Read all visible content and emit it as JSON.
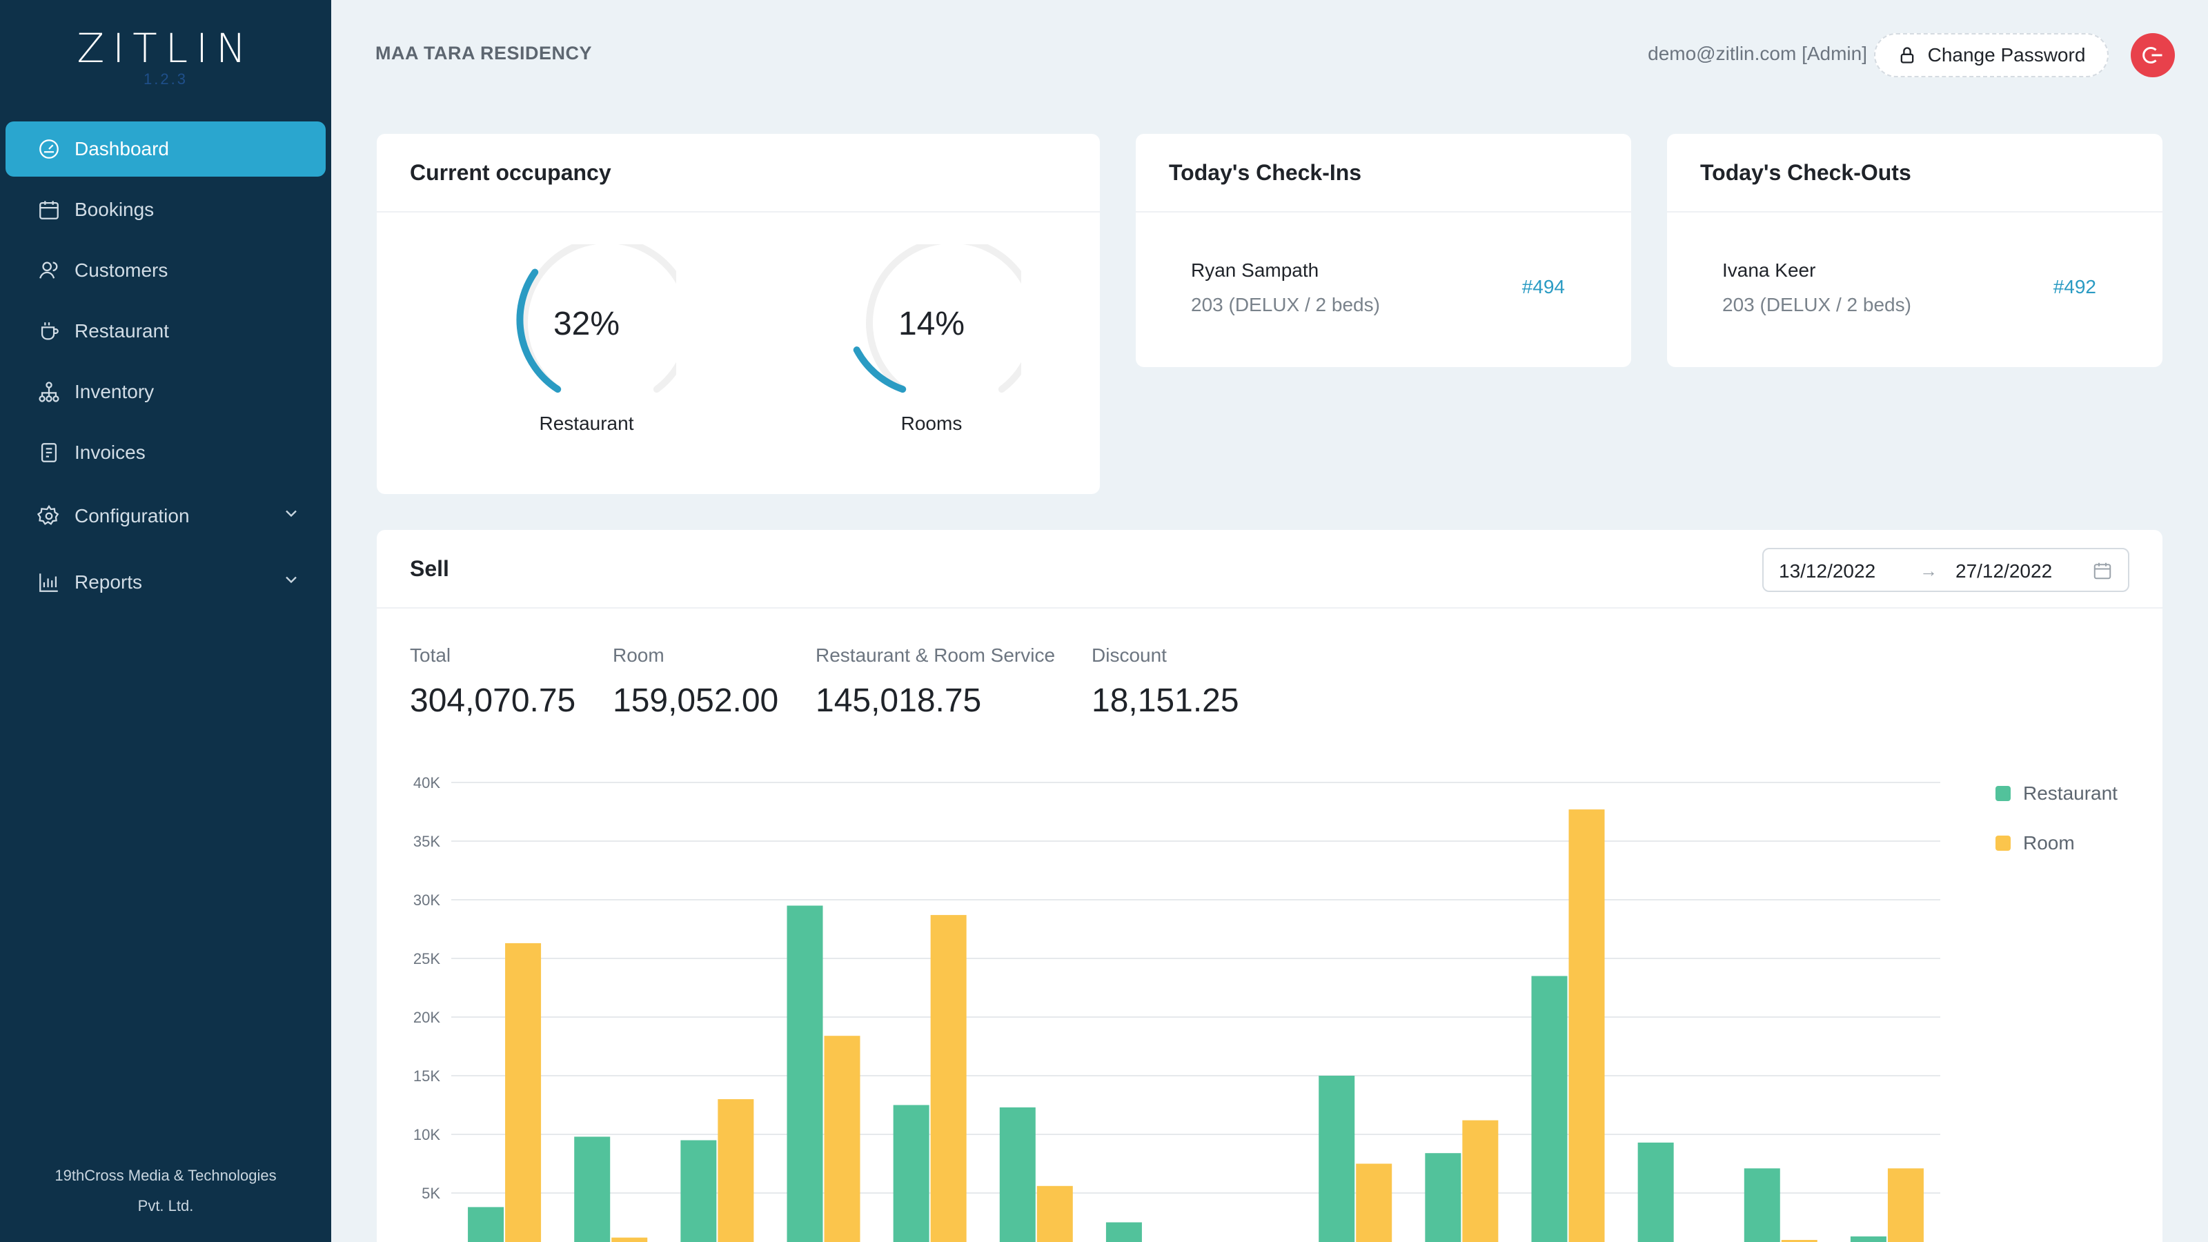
{
  "app": {
    "logo_text": "ZITLIN",
    "version": "1.2.3",
    "footer_line1": "19thCross Media & Technologies",
    "footer_line2": "Pvt. Ltd."
  },
  "sidebar": {
    "items": [
      {
        "label": "Dashboard",
        "icon": "dashboard-icon",
        "active": true
      },
      {
        "label": "Bookings",
        "icon": "calendar-icon"
      },
      {
        "label": "Customers",
        "icon": "users-icon"
      },
      {
        "label": "Restaurant",
        "icon": "coffee-cup-icon"
      },
      {
        "label": "Inventory",
        "icon": "hierarchy-icon"
      },
      {
        "label": "Invoices",
        "icon": "invoice-icon"
      },
      {
        "label": "Configuration",
        "icon": "gear-icon",
        "expandable": true
      },
      {
        "label": "Reports",
        "icon": "bar-chart-icon",
        "expandable": true
      }
    ]
  },
  "header": {
    "hotel_name": "MAA TARA RESIDENCY",
    "user": "demo@zitlin.com [Admin]",
    "change_password_label": "Change Password"
  },
  "occupancy": {
    "title": "Current occupancy",
    "restaurant": {
      "value": 32,
      "display": "32%",
      "label": "Restaurant"
    },
    "rooms": {
      "value": 14,
      "display": "14%",
      "label": "Rooms"
    }
  },
  "checkins": {
    "title": "Today's Check-Ins",
    "guest": "Ryan Sampath",
    "room": "203 (DELUX / 2 beds)",
    "booking_id": "#494"
  },
  "checkouts": {
    "title": "Today's Check-Outs",
    "guest": "Ivana Keer",
    "room": "203 (DELUX / 2 beds)",
    "booking_id": "#492"
  },
  "sell": {
    "title": "Sell",
    "date_from": "13/12/2022",
    "date_to": "27/12/2022",
    "stats": [
      {
        "label": "Total",
        "value": "304,070.75"
      },
      {
        "label": "Room",
        "value": "159,052.00"
      },
      {
        "label": "Restaurant & Room Service",
        "value": "145,018.75"
      },
      {
        "label": "Discount",
        "value": "18,151.25"
      }
    ]
  },
  "colors": {
    "sidebar_bg": "#0e3149",
    "accent": "#2aa6cf",
    "restaurant": "#52c29b",
    "room": "#fbc54c",
    "logout": "#e8414b"
  },
  "chart_data": {
    "type": "bar",
    "ylim": [
      0,
      40000
    ],
    "yticks": [
      "40K",
      "35K",
      "30K",
      "25K",
      "20K",
      "15K",
      "10K",
      "5K"
    ],
    "grid": true,
    "legend": "right",
    "series": [
      {
        "name": "Restaurant",
        "color": "#52c29b",
        "values": [
          3800,
          9800,
          9500,
          29500,
          12500,
          12300,
          2500,
          0,
          15000,
          8400,
          23500,
          9300,
          7100,
          1300
        ]
      },
      {
        "name": "Room",
        "color": "#fbc54c",
        "values": [
          26300,
          1200,
          13000,
          18400,
          28700,
          5600,
          0,
          0,
          7500,
          11200,
          37700,
          0,
          1000,
          7100
        ]
      }
    ]
  }
}
